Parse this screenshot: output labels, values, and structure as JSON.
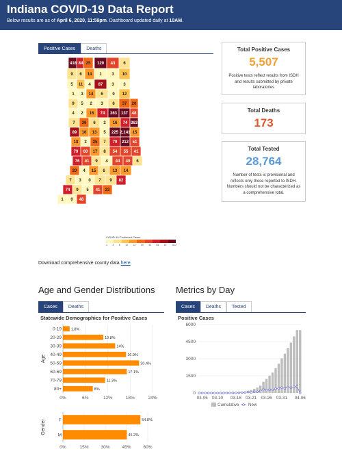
{
  "header": {
    "title": "Indiana COVID-19 Data Report",
    "subtitle_prefix": "Below results are as of ",
    "subtitle_date": "April 6, 2020, 11:59pm",
    "subtitle_mid": ". Dashboard updated daily at ",
    "subtitle_time": "10AM",
    "subtitle_end": "."
  },
  "map_tabs": [
    {
      "label": "Positive Cases",
      "active": true
    },
    {
      "label": "Deaths",
      "active": false
    }
  ],
  "legend": {
    "title": "COVID-19 Confirmed Cases",
    "ticks": [
      "1",
      "4",
      "6",
      "10",
      "13",
      "19",
      "40",
      "64",
      "87",
      "101+"
    ],
    "colors": [
      "#fff7bc",
      "#fee391",
      "#fec44f",
      "#fe9929",
      "#f16913",
      "#e4452a",
      "#d11f2a",
      "#a50f15",
      "#6b0a1e"
    ]
  },
  "counties": [
    "418",
    "84",
    "25",
    "129",
    "43",
    "6",
    "9",
    "6",
    "14",
    "1",
    "3",
    "10",
    "5",
    "11",
    "4",
    "87",
    "3",
    "3",
    "1",
    "3",
    "14",
    "6",
    "0",
    "12",
    "9",
    "5",
    "2",
    "3",
    "6",
    "37",
    "20",
    "4",
    "2",
    "16",
    "74",
    "363",
    "137",
    "48",
    "7",
    "36",
    "6",
    "2",
    "16",
    "74",
    "363",
    "89",
    "16",
    "13",
    "5",
    "225",
    "2,141",
    "15",
    "18",
    "3",
    "25",
    "7",
    "79",
    "212",
    "51",
    "79",
    "60",
    "17",
    "8",
    "54",
    "55",
    "41",
    "76",
    "41",
    "9",
    "4",
    "44",
    "40",
    "6",
    "20",
    "4",
    "15",
    "6",
    "13",
    "14",
    "7",
    "3",
    "0",
    "7",
    "9",
    "82",
    "74",
    "9",
    "5",
    "41",
    "23",
    "1",
    "0",
    "48"
  ],
  "cards": {
    "positive": {
      "title": "Total Positive Cases",
      "value": "5,507",
      "desc": "Positive tests reflect results from ISDH and results submitted by private laboratories",
      "color": "#f0a030"
    },
    "deaths": {
      "title": "Total Deaths",
      "value": "173",
      "color": "#e2562a"
    },
    "tested": {
      "title": "Total Tested",
      "value": "28,764",
      "desc": "Number of tests is provisional and reflects only those reported to ISDH. Numbers should not be characterized as a comprehensive total.",
      "color": "#5b9bd5"
    }
  },
  "download": {
    "prefix": "Download comprehensive county data ",
    "link": "here",
    "suffix": "."
  },
  "age_section": {
    "title": "Age and Gender Distributions",
    "tabs": [
      {
        "label": "Cases",
        "active": true
      },
      {
        "label": "Deaths",
        "active": false
      }
    ],
    "chart_title": "Statewide Demographics for Positive Cases"
  },
  "metrics_section": {
    "title": "Metrics by Day",
    "tabs": [
      {
        "label": "Cases",
        "active": true
      },
      {
        "label": "Deaths",
        "active": false
      },
      {
        "label": "Tested",
        "active": false
      }
    ],
    "chart_title": "Positive Cases"
  },
  "chart_data": [
    {
      "type": "bar",
      "orientation": "horizontal",
      "ylabel": "Age",
      "categories": [
        "0-19",
        "20-29",
        "30-39",
        "40-49",
        "50-59",
        "60-69",
        "70-79",
        "80+"
      ],
      "values": [
        1.8,
        10.8,
        14,
        16.9,
        20.4,
        17.1,
        11.3,
        8
      ],
      "value_labels": [
        "1.8%",
        "10.8%",
        "14%",
        "16.9%",
        "20.4%",
        "17.1%",
        "11.3%",
        "8%"
      ],
      "xlim": [
        0,
        24
      ],
      "xticks": [
        "0%",
        "6%",
        "12%",
        "18%",
        "24%"
      ],
      "color": "#ff8c00"
    },
    {
      "type": "bar",
      "orientation": "horizontal",
      "ylabel": "Gender",
      "categories": [
        "F",
        "M"
      ],
      "values": [
        54.8,
        45.2
      ],
      "value_labels": [
        "54.8%",
        "45.2%"
      ],
      "xlim": [
        0,
        60
      ],
      "xticks": [
        "0%",
        "15%",
        "30%",
        "45%",
        "60%"
      ],
      "color": "#ff8c00"
    },
    {
      "type": "bar",
      "dates": [
        "03-04",
        "03-05",
        "03-06",
        "03-07",
        "03-08",
        "03-09",
        "03-10",
        "03-11",
        "03-12",
        "03-13",
        "03-14",
        "03-15",
        "03-16",
        "03-17",
        "03-18",
        "03-19",
        "03-20",
        "03-21",
        "03-22",
        "03-23",
        "03-24",
        "03-25",
        "03-26",
        "03-27",
        "03-28",
        "03-29",
        "03-30",
        "03-31",
        "04-01",
        "04-02",
        "04-03",
        "04-04",
        "04-05",
        "04-06"
      ],
      "xticks": [
        "03-05",
        "03-10",
        "03-16",
        "03-21",
        "03-26",
        "03-31",
        "04-06"
      ],
      "yticks": [
        "0",
        "1500",
        "3000",
        "4500",
        "6000"
      ],
      "ylim": [
        0,
        6000
      ],
      "series": [
        {
          "name": "Cumulative",
          "color": "#bdbdbd",
          "values": [
            1,
            2,
            4,
            6,
            7,
            10,
            12,
            14,
            16,
            19,
            24,
            30,
            39,
            56,
            79,
            126,
            204,
            259,
            365,
            477,
            645,
            981,
            1232,
            1513,
            1786,
            2159,
            2565,
            3039,
            3437,
            3953,
            4411,
            4956,
            5507,
            5507
          ]
        },
        {
          "name": "New",
          "color": "#6a6acd",
          "values": [
            1,
            1,
            2,
            2,
            1,
            3,
            2,
            2,
            2,
            3,
            5,
            6,
            9,
            17,
            23,
            47,
            78,
            55,
            106,
            112,
            168,
            336,
            251,
            281,
            273,
            373,
            406,
            474,
            398,
            516,
            458,
            545,
            551,
            0
          ]
        }
      ]
    }
  ]
}
